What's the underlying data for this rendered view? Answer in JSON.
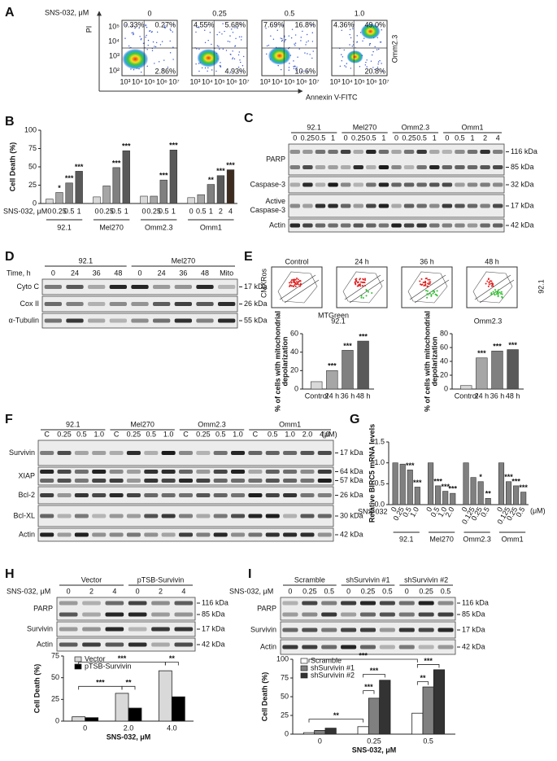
{
  "panel_letters": [
    "A",
    "B",
    "C",
    "D",
    "E",
    "F",
    "G",
    "H",
    "I"
  ],
  "flow_A": {
    "treatment": "SNS-032, μM",
    "doses": [
      "0",
      "0.25",
      "0.5",
      "1.0"
    ],
    "quadrants": [
      [
        "0.33%",
        "0.27%",
        "2.86%"
      ],
      [
        "4.55%",
        "5.68%",
        "4.93%"
      ],
      [
        "7.69%",
        "16.8%",
        "10.6%"
      ],
      [
        "4.36%",
        "49.0%",
        "20.8%"
      ]
    ],
    "y_label": "PI",
    "x_label": "Annexin V-FITC",
    "y_ticks": [
      "10⁵",
      "10⁴",
      "10³",
      "10²"
    ],
    "x_ticks": [
      "10³",
      "10⁴",
      "10⁵",
      "10⁶",
      "10⁷"
    ],
    "cell_line": "Omm2.3"
  },
  "flow_E": {
    "titles": [
      "Control",
      "24 h",
      "36 h",
      "48 h"
    ],
    "y_label": "CMXRos",
    "x_label": "MTGreen",
    "cell_line": "92.1"
  },
  "blots": {
    "C": {
      "groups": [
        {
          "name": "92.1",
          "lanes": [
            "0",
            "0.25",
            "0.5",
            "1"
          ]
        },
        {
          "name": "Mel270",
          "lanes": [
            "0",
            "0.25",
            "0.5",
            "1"
          ]
        },
        {
          "name": "Omm2.3",
          "lanes": [
            "0",
            "0.25",
            "0.5",
            "1"
          ]
        },
        {
          "name": "Omm1",
          "lanes": [
            "0",
            "0.5",
            "1",
            "2",
            "4"
          ]
        }
      ],
      "rows": [
        {
          "label": [
            "PARP"
          ],
          "markers": [
            "116 kDa",
            "85 kDa"
          ]
        },
        {
          "label": [
            "Caspase-3"
          ],
          "markers": [
            "32 kDa"
          ]
        },
        {
          "label": [
            "Active",
            "Caspase-3"
          ],
          "markers": [
            "17 kDa"
          ]
        },
        {
          "label": [
            "Actin"
          ],
          "markers": [
            "42 kDa"
          ]
        }
      ]
    },
    "D": {
      "lane_title": "Time, h",
      "groups": [
        {
          "name": "92.1",
          "lanes": [
            "0",
            "24",
            "36",
            "48"
          ]
        },
        {
          "name": "Mel270",
          "lanes": [
            "0",
            "24",
            "36",
            "48",
            "Mito"
          ]
        }
      ],
      "rows": [
        {
          "label": [
            "Cyto C"
          ],
          "markers": [
            "17 kDa"
          ]
        },
        {
          "label": [
            "Cox II"
          ],
          "markers": [
            "26 kDa"
          ]
        },
        {
          "label": [
            "α-Tubulin"
          ],
          "markers": [
            "55 kDa"
          ]
        }
      ]
    },
    "F": {
      "unit": "(μM)",
      "groups": [
        {
          "name": "92.1",
          "lanes": [
            "C",
            "0.25",
            "0.5",
            "1.0"
          ]
        },
        {
          "name": "Mel270",
          "lanes": [
            "C",
            "0.25",
            "0.5",
            "1.0"
          ]
        },
        {
          "name": "Omm2.3",
          "lanes": [
            "C",
            "0.25",
            "0.5",
            "1.0"
          ]
        },
        {
          "name": "Omm1",
          "lanes": [
            "C",
            "0.5",
            "1.0",
            "2.0",
            "4.0"
          ]
        }
      ],
      "rows": [
        {
          "label": [
            "Survivin"
          ],
          "markers": [
            "17 kDa"
          ]
        },
        {
          "label": [
            "XIAP"
          ],
          "markers": [
            "64 kDa",
            "57 kDa"
          ]
        },
        {
          "label": [
            "Bcl-2"
          ],
          "markers": [
            "26 kDa"
          ]
        },
        {
          "label": [
            "Bcl-XL"
          ],
          "markers": [
            "30 kDa"
          ]
        },
        {
          "label": [
            "Actin"
          ],
          "markers": [
            "42 kDa"
          ]
        }
      ]
    },
    "H": {
      "lane_title": "SNS-032, μM",
      "groups": [
        {
          "name": "Vector",
          "lanes": [
            "0",
            "2",
            "4"
          ]
        },
        {
          "name": "pTSB-Survivin",
          "lanes": [
            "0",
            "2",
            "4"
          ]
        }
      ],
      "rows": [
        {
          "label": [
            "PARP"
          ],
          "markers": [
            "116 kDa",
            "85 kDa"
          ]
        },
        {
          "label": [
            "Survivin"
          ],
          "markers": [
            "17 kDa"
          ]
        },
        {
          "label": [
            "Actin"
          ],
          "markers": [
            "42 kDa"
          ]
        }
      ]
    },
    "I": {
      "lane_title": "SNS-032, μM",
      "groups": [
        {
          "name": "Scramble",
          "lanes": [
            "0",
            "0.25",
            "0.5"
          ]
        },
        {
          "name": "shSurvivin #1",
          "lanes": [
            "0",
            "0.25",
            "0.5"
          ]
        },
        {
          "name": "shSurvivin #2",
          "lanes": [
            "0",
            "0.25",
            "0.5"
          ]
        }
      ],
      "rows": [
        {
          "label": [
            "PARP"
          ],
          "markers": [
            "116 kDa",
            "85 kDa"
          ]
        },
        {
          "label": [
            "Survivin"
          ],
          "markers": [
            "17 kDa"
          ]
        },
        {
          "label": [
            "Actin"
          ],
          "markers": [
            "42 kDa"
          ]
        }
      ]
    }
  },
  "chart_data": [
    {
      "type": "bar",
      "y_label": "Cell Death (%)",
      "x_label": "SNS-032, μM",
      "ylim": [
        0,
        100
      ],
      "yticks": [
        0,
        25,
        50,
        75,
        100
      ],
      "colors": [
        "#d9d9d9",
        "#a6a6a6",
        "#808080",
        "#595959",
        "#3d2b1f"
      ],
      "groups": [
        {
          "name": "92.1",
          "categories": [
            "0",
            "0.25",
            "0.5",
            "1"
          ],
          "values": [
            6,
            15,
            28,
            44
          ],
          "stars": [
            null,
            "*",
            "***",
            "***"
          ]
        },
        {
          "name": "Mel270",
          "categories": [
            "0",
            "0.25",
            "0.5",
            "1"
          ],
          "values": [
            9,
            24,
            49,
            72
          ],
          "stars": [
            null,
            null,
            "***",
            "***"
          ]
        },
        {
          "name": "Omm2.3",
          "categories": [
            "0",
            "0.25",
            "0.5",
            "1"
          ],
          "values": [
            10,
            10,
            32,
            73
          ],
          "stars": [
            null,
            null,
            "***",
            "***"
          ]
        },
        {
          "name": "Omm1",
          "categories": [
            "0",
            "0.5",
            "1",
            "2",
            "4"
          ],
          "values": [
            8,
            12,
            26,
            38,
            46
          ],
          "stars": [
            null,
            null,
            "**",
            "***",
            "***"
          ]
        }
      ]
    },
    {
      "type": "bar",
      "title": "92.1",
      "y_label": [
        "% of cells with mitochondrial",
        "depolarization"
      ],
      "ylim": [
        0,
        60
      ],
      "yticks": [
        0,
        20,
        40,
        60
      ],
      "colors": [
        "#d9d9d9",
        "#a6a6a6",
        "#808080",
        "#595959"
      ],
      "groups": [
        {
          "categories": [
            "Control",
            "24 h",
            "36 h",
            "48 h"
          ],
          "values": [
            8,
            20,
            42,
            52
          ],
          "stars": [
            null,
            "***",
            "***",
            "***"
          ]
        }
      ]
    },
    {
      "type": "bar",
      "title": "Omm2.3",
      "y_label": [
        "% of cells with mitochondrial",
        "depolarization"
      ],
      "ylim": [
        0,
        80
      ],
      "yticks": [
        0,
        20,
        40,
        60,
        80
      ],
      "colors": [
        "#d9d9d9",
        "#a6a6a6",
        "#808080",
        "#595959"
      ],
      "groups": [
        {
          "categories": [
            "Control",
            "24 h",
            "36 h",
            "48 h"
          ],
          "values": [
            5,
            45,
            55,
            57
          ],
          "stars": [
            null,
            "***",
            "***",
            "***"
          ]
        }
      ]
    },
    {
      "type": "bar",
      "y_label": "Relative BIRC5 mRNA levels",
      "x_label": "SNS-032",
      "unit": "(μM)",
      "ylim": [
        0,
        1.5
      ],
      "yticks": [
        {
          "value": 0,
          "label": "0.0"
        },
        0.5,
        {
          "value": 1,
          "label": "1.0"
        },
        1.5
      ],
      "colors": [
        "#808080"
      ],
      "groups": [
        {
          "name": "92.1",
          "categories": [
            "0",
            "0.25",
            "0.5",
            "1.0"
          ],
          "values": [
            1.0,
            0.97,
            0.83,
            0.42
          ],
          "stars": [
            null,
            null,
            "***",
            "***"
          ]
        },
        {
          "name": "Mel270",
          "categories": [
            "0",
            "0.5",
            "1.0",
            "2.0"
          ],
          "values": [
            1.0,
            0.45,
            0.32,
            0.27
          ],
          "stars": [
            null,
            "***",
            "***",
            "***"
          ]
        },
        {
          "name": "Omm2.3",
          "categories": [
            "0",
            "0.125",
            "0.25",
            "0.5"
          ],
          "values": [
            1.0,
            0.65,
            0.55,
            0.15
          ],
          "stars": [
            null,
            null,
            "*",
            "**"
          ]
        },
        {
          "name": "Omm1",
          "categories": [
            "0",
            "0.125",
            "0.25",
            "0.5"
          ],
          "values": [
            1.0,
            0.55,
            0.45,
            0.3
          ],
          "stars": [
            null,
            "***",
            "***",
            "***"
          ]
        }
      ]
    },
    {
      "type": "grouped_bar",
      "y_label": "Cell Death (%)",
      "x_label": "SNS-032, μM",
      "categories": [
        "0",
        "2.0",
        "4.0"
      ],
      "ylim": [
        0,
        75
      ],
      "yticks": [
        0,
        25,
        50,
        75
      ],
      "series": [
        {
          "name": "Vector",
          "color": "#d9d9d9",
          "values": [
            5,
            32,
            58
          ]
        },
        {
          "name": "pTSB-Survivin",
          "color": "#000000",
          "values": [
            4,
            15,
            28
          ]
        }
      ],
      "significance": [
        "***",
        "**",
        "***",
        "**"
      ]
    },
    {
      "type": "grouped_bar",
      "y_label": "Cell Death (%)",
      "x_label": "SNS-032, μM",
      "categories": [
        "0",
        "0.25",
        "0.5"
      ],
      "ylim": [
        0,
        100
      ],
      "yticks": [
        0,
        25,
        50,
        75,
        100
      ],
      "series": [
        {
          "name": "Scramble",
          "color": "#ffffff",
          "values": [
            2,
            10,
            28
          ]
        },
        {
          "name": "shSurvivin #1",
          "color": "#808080",
          "values": [
            5,
            48,
            63
          ]
        },
        {
          "name": "shSurvivin #2",
          "color": "#333333",
          "values": [
            8,
            72,
            86
          ]
        }
      ],
      "significance": [
        "**",
        "***",
        "***",
        "**",
        "***",
        "***"
      ]
    }
  ]
}
